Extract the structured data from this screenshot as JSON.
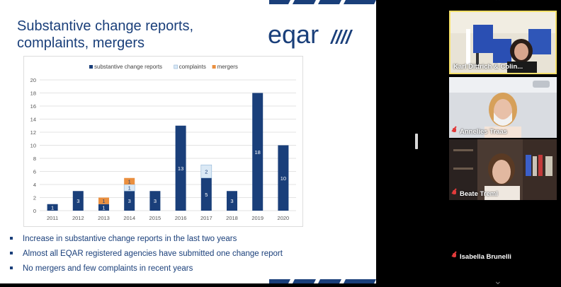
{
  "slide": {
    "title": "Substantive change reports,\ncomplaints, mergers",
    "logo_text": "eqar",
    "bullets": [
      "Increase in substantive change reports in the last two years",
      "Almost all EQAR registered agencies have submitted one change report",
      "No mergers and few complaints in recent years"
    ]
  },
  "chart_data": {
    "type": "bar",
    "stacked": true,
    "categories": [
      "2011",
      "2012",
      "2013",
      "2014",
      "2015",
      "2016",
      "2017",
      "2018",
      "2019",
      "2020"
    ],
    "series": [
      {
        "name": "substantive change reports",
        "color": "#1a3f7a",
        "values": [
          1,
          3,
          1,
          3,
          3,
          13,
          5,
          3,
          18,
          10
        ]
      },
      {
        "name": "complaints",
        "color": "#dbe9f5",
        "values": [
          0,
          0,
          0,
          1,
          0,
          0,
          2,
          0,
          0,
          0
        ]
      },
      {
        "name": "mergers",
        "color": "#ea8f3f",
        "values": [
          0,
          0,
          1,
          1,
          0,
          0,
          0,
          0,
          0,
          0
        ]
      }
    ],
    "ylim": [
      0,
      20
    ],
    "yticks": [
      "0",
      "2",
      "4",
      "6",
      "8",
      "10",
      "12",
      "14",
      "16",
      "18",
      "20"
    ],
    "grid": true,
    "legend": "top"
  },
  "participants": [
    {
      "name": "Karl Dittrich & Colin...",
      "muted": false,
      "active": true
    },
    {
      "name": "Annelies Traas",
      "muted": true,
      "active": false
    },
    {
      "name": "Beate Treml",
      "muted": true,
      "active": false
    },
    {
      "name": "Isabella Brunelli",
      "muted": true,
      "active": false
    }
  ]
}
